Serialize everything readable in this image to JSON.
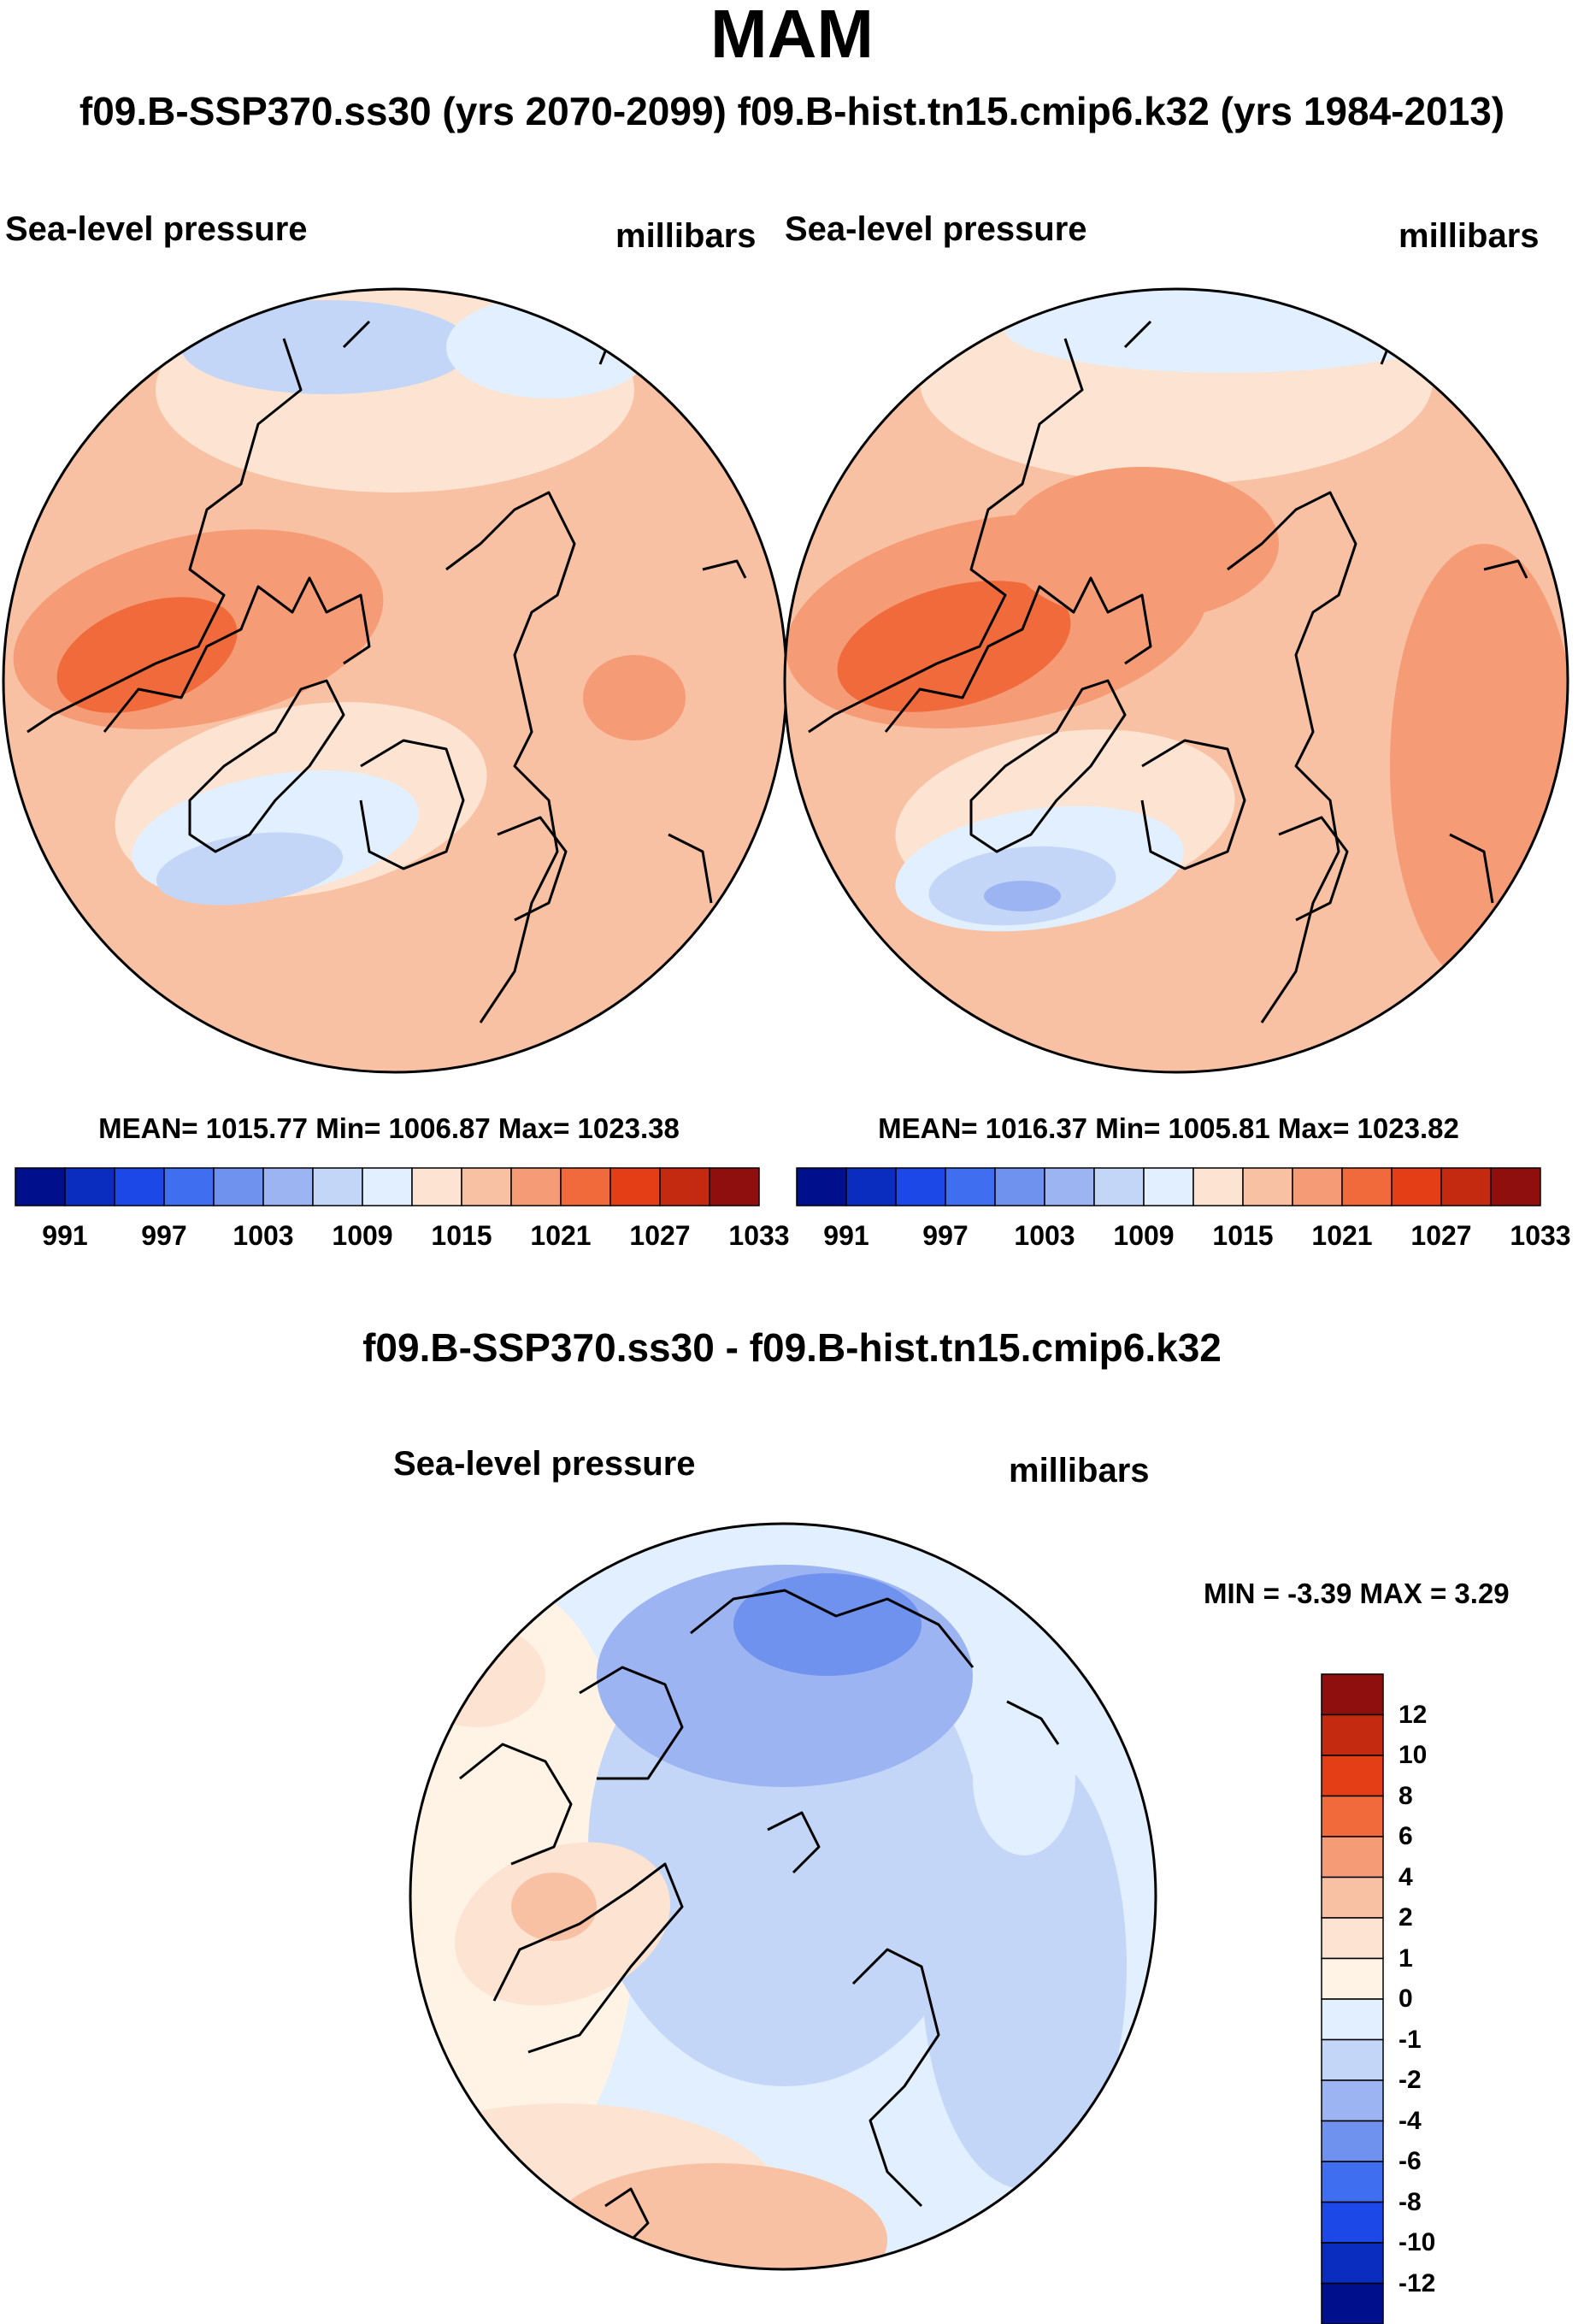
{
  "season": "MAM",
  "case_header": "f09.B-SSP370.ss30 (yrs 2070-2099)  f09.B-hist.tn15.cmip6.k32 (yrs 1984-2013)",
  "diff_title": "f09.B-SSP370.ss30 - f09.B-hist.tn15.cmip6.k32",
  "chart_data": [
    {
      "type": "heatmap",
      "projection": "north polar stereographic",
      "case": "f09.B-SSP370.ss30 (yrs 2070-2099)",
      "variable": "Sea-level pressure",
      "units": "millibars",
      "stats": "MEAN= 1015.77  Min= 1006.87  Max= 1023.38",
      "mean": 1015.77,
      "min": 1006.87,
      "max": 1023.38,
      "colorbar_ticks": [
        "991",
        "997",
        "1003",
        "1009",
        "1015",
        "1021",
        "1027",
        "1033"
      ],
      "colorbar_colors": [
        "#000f8c",
        "#0a2dc0",
        "#1b48e6",
        "#3f6ef0",
        "#6e92ee",
        "#9cb4f2",
        "#c4d6f7",
        "#e2efff",
        "#fde4d2",
        "#f9c1a3",
        "#f59c77",
        "#f06a3b",
        "#e43e17",
        "#c32a10",
        "#8f0f0f"
      ]
    },
    {
      "type": "heatmap",
      "projection": "north polar stereographic",
      "case": "f09.B-hist.tn15.cmip6.k32 (yrs 1984-2013)",
      "variable": "Sea-level pressure",
      "units": "millibars",
      "stats": "MEAN= 1016.37  Min= 1005.81  Max= 1023.82",
      "mean": 1016.37,
      "min": 1005.81,
      "max": 1023.82,
      "colorbar_ticks": [
        "991",
        "997",
        "1003",
        "1009",
        "1015",
        "1021",
        "1027",
        "1033"
      ],
      "colorbar_colors": [
        "#000f8c",
        "#0a2dc0",
        "#1b48e6",
        "#3f6ef0",
        "#6e92ee",
        "#9cb4f2",
        "#c4d6f7",
        "#e2efff",
        "#fde4d2",
        "#f9c1a3",
        "#f59c77",
        "#f06a3b",
        "#e43e17",
        "#c32a10",
        "#8f0f0f"
      ]
    },
    {
      "type": "heatmap",
      "projection": "north polar stereographic",
      "case": "f09.B-SSP370.ss30 - f09.B-hist.tn15.cmip6.k32",
      "variable": "Sea-level pressure",
      "units": "millibars",
      "stats": "MIN =  -3.39 MAX =   3.29",
      "min": -3.39,
      "max": 3.29,
      "colorbar_ticks": [
        "12",
        "10",
        "8",
        "6",
        "4",
        "2",
        "1",
        "0",
        "-1",
        "-2",
        "-4",
        "-6",
        "-8",
        "-10",
        "-12"
      ],
      "colorbar_colors": [
        "#8f0f0f",
        "#c32a10",
        "#e43e17",
        "#f06a3b",
        "#f59c77",
        "#f9c1a3",
        "#fde4d2",
        "#fff3e6",
        "#e2efff",
        "#c4d6f7",
        "#9cb4f2",
        "#6e92ee",
        "#3f6ef0",
        "#1b48e6",
        "#0a2dc0",
        "#000f8c"
      ]
    }
  ]
}
